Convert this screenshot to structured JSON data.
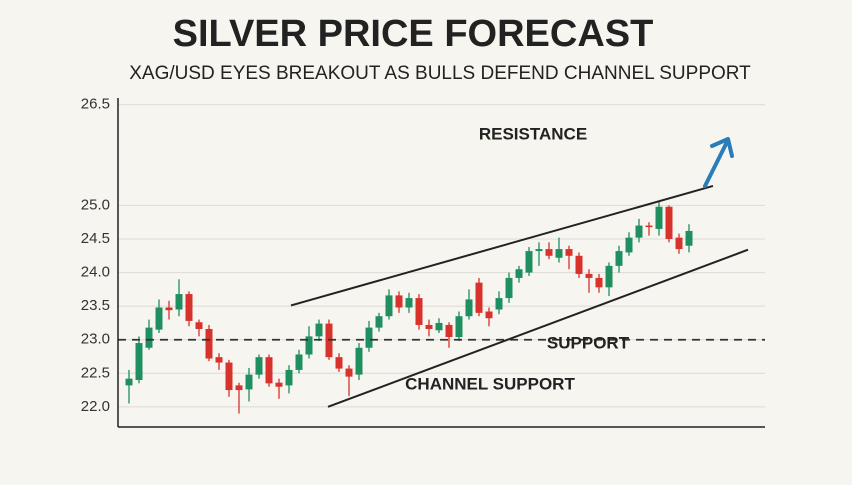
{
  "chart_data": {
    "type": "candlestick",
    "title": "SILVER PRICE FORECAST",
    "subtitle": "XAG/USD EYES BREAKOUT AS BULLS DEFEND CHANNEL SUPPORT",
    "open": [
      22.32,
      22.4,
      22.88,
      23.15,
      23.48,
      23.45,
      23.68,
      23.26,
      23.16,
      22.74,
      22.66,
      22.32,
      22.26,
      22.48,
      22.74,
      22.36,
      22.32,
      22.55,
      22.78,
      23.05,
      23.24,
      22.74,
      22.57,
      22.48,
      22.88,
      23.18,
      23.35,
      23.66,
      23.48,
      23.62,
      23.22,
      23.14,
      23.22,
      23.04,
      23.35,
      23.85,
      23.42,
      23.45,
      23.62,
      23.92,
      24.0,
      24.32,
      24.35,
      24.22,
      24.35,
      24.25,
      23.98,
      23.92,
      23.78,
      24.1,
      24.3,
      24.52,
      24.7,
      24.65,
      24.98,
      24.52,
      24.4
    ],
    "high": [
      22.55,
      23.05,
      23.3,
      23.6,
      23.58,
      23.9,
      23.72,
      23.3,
      23.22,
      22.8,
      22.7,
      22.36,
      22.58,
      22.78,
      22.78,
      22.42,
      22.62,
      22.85,
      23.2,
      23.3,
      23.3,
      22.8,
      22.62,
      22.95,
      23.28,
      23.4,
      23.75,
      23.72,
      23.7,
      23.68,
      23.3,
      23.32,
      23.26,
      23.42,
      23.75,
      23.92,
      23.48,
      23.72,
      24.0,
      24.1,
      24.38,
      24.45,
      24.45,
      24.52,
      24.4,
      24.3,
      24.05,
      23.98,
      24.15,
      24.4,
      24.6,
      24.8,
      24.75,
      25.05,
      25.0,
      24.58,
      24.72
    ],
    "low": [
      22.05,
      22.35,
      22.85,
      23.1,
      23.3,
      23.35,
      23.2,
      23.05,
      22.68,
      22.55,
      22.15,
      21.9,
      22.08,
      22.42,
      22.3,
      22.12,
      22.2,
      22.5,
      22.72,
      22.98,
      22.7,
      22.52,
      22.16,
      22.4,
      22.82,
      23.12,
      23.3,
      23.4,
      23.4,
      23.15,
      23.05,
      23.1,
      22.88,
      22.98,
      23.3,
      23.35,
      23.2,
      23.38,
      23.55,
      23.85,
      23.95,
      24.1,
      24.2,
      24.15,
      24.05,
      23.92,
      23.7,
      23.7,
      23.65,
      24.0,
      24.25,
      24.45,
      24.55,
      24.55,
      24.45,
      24.28,
      24.3
    ],
    "close": [
      22.42,
      22.95,
      23.18,
      23.48,
      23.44,
      23.68,
      23.28,
      23.16,
      22.72,
      22.66,
      22.25,
      22.25,
      22.48,
      22.74,
      22.35,
      22.3,
      22.55,
      22.78,
      23.05,
      23.24,
      22.74,
      22.57,
      22.45,
      22.88,
      23.18,
      23.35,
      23.66,
      23.48,
      23.62,
      23.22,
      23.16,
      23.25,
      23.04,
      23.35,
      23.6,
      23.4,
      23.32,
      23.62,
      23.92,
      24.05,
      24.32,
      24.35,
      24.25,
      24.35,
      24.25,
      23.98,
      23.92,
      23.78,
      24.1,
      24.32,
      24.52,
      24.7,
      24.68,
      24.98,
      24.5,
      24.35,
      24.62
    ],
    "up_color": "#1f8f5f",
    "down_color": "#d8322d",
    "xlim": [
      -1.1,
      63.6
    ],
    "ylim": [
      21.7,
      26.6
    ],
    "yticks": [
      {
        "value": 22,
        "label": "22.0"
      },
      22.5,
      {
        "value": 23,
        "label": "23.0"
      },
      23.5,
      {
        "value": 24,
        "label": "24.0"
      },
      24.5,
      {
        "value": 25,
        "label": "25.0"
      },
      26.5
    ],
    "grid": true,
    "support_level": 23,
    "support_label": "SUPPORT",
    "resistance_line": {
      "x": [
        16.2,
        58.4
      ],
      "y": [
        23.51,
        25.29
      ]
    },
    "resistance_label": "RESISTANCE",
    "channel_support_line": {
      "x": [
        19.9,
        61.9
      ],
      "y": [
        22.0,
        24.34
      ]
    },
    "channel_support_label": "CHANNEL SUPPORT"
  }
}
